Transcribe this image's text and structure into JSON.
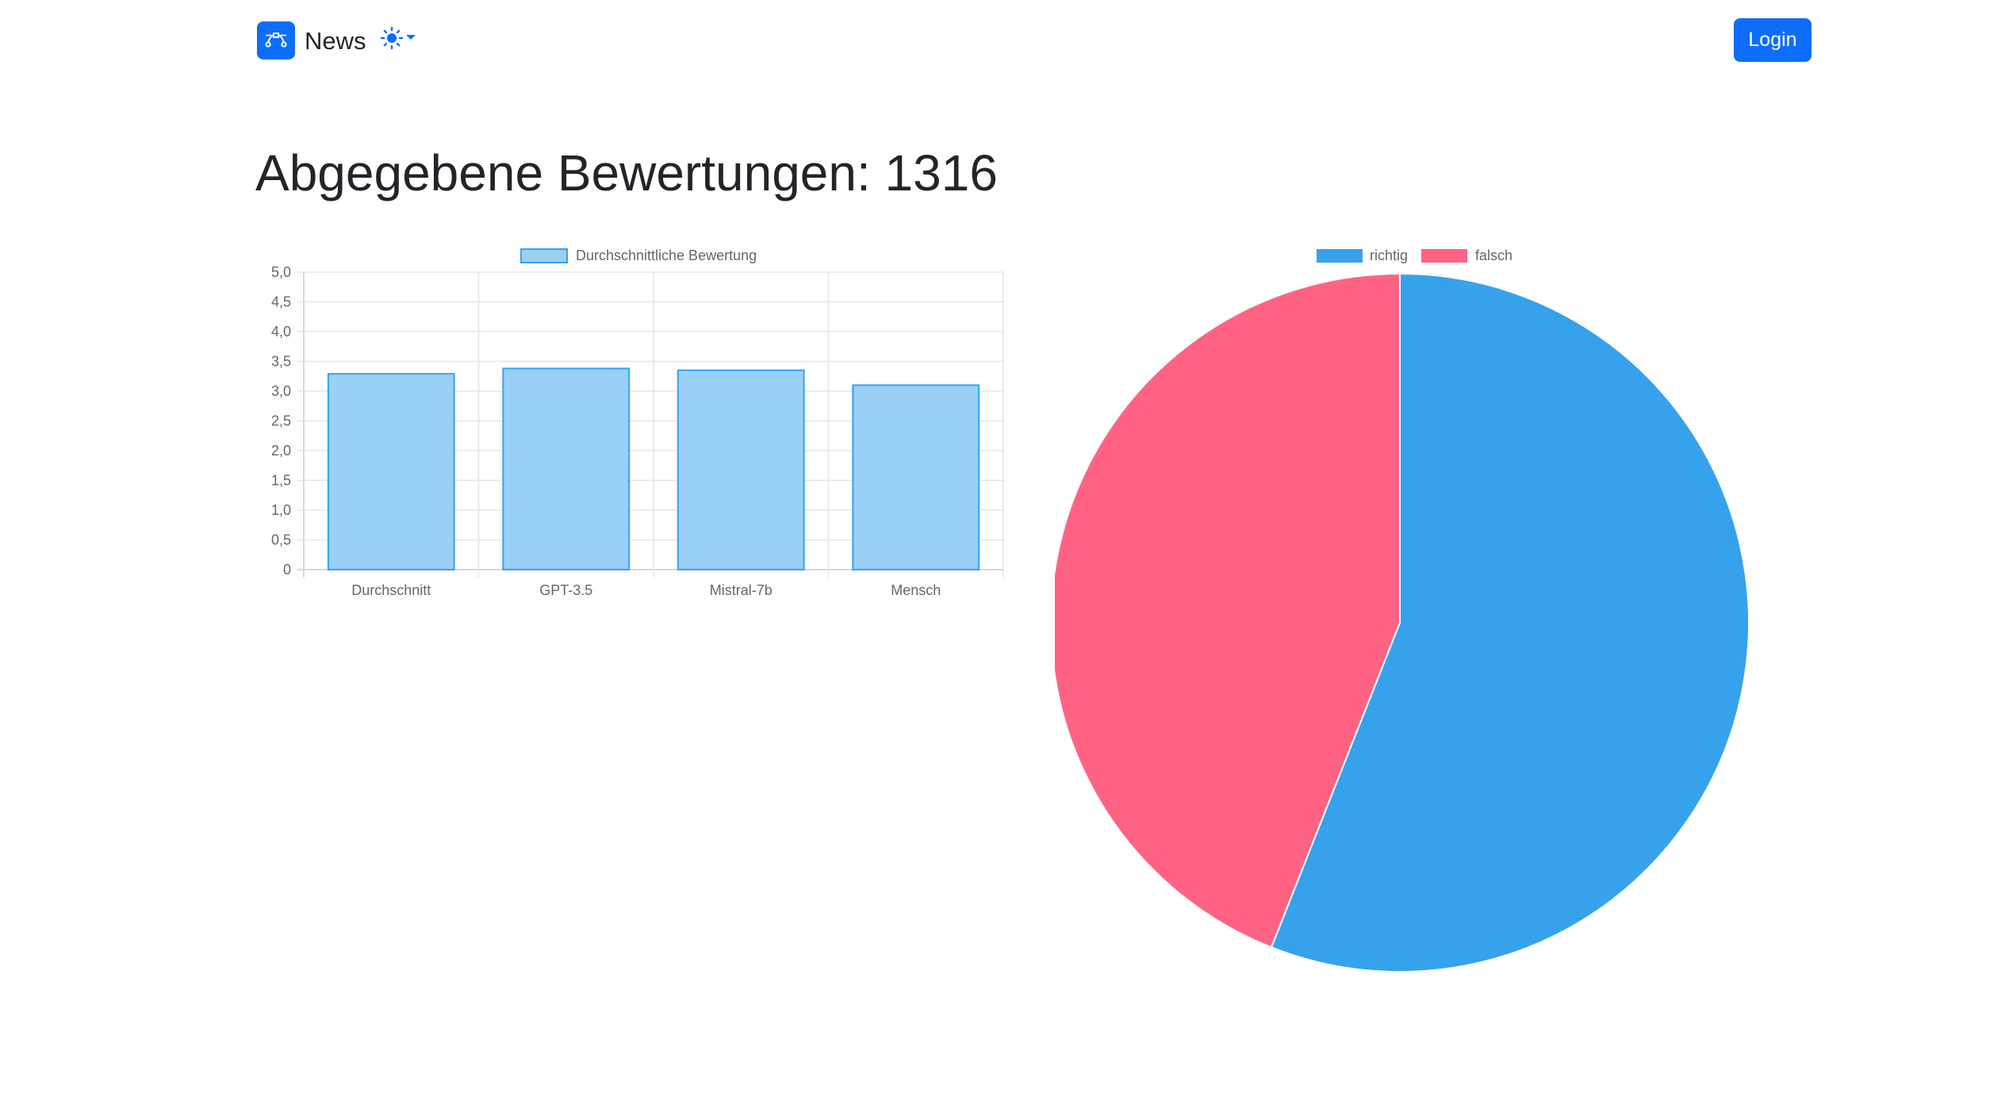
{
  "navbar": {
    "brand_label": "News",
    "brand_icon": "bezier-curve-icon",
    "theme_icon": "sun-icon",
    "login_label": "Login"
  },
  "page": {
    "title": "Abgegebene Bewertungen: 1316"
  },
  "colors": {
    "primary": "#0d6efd",
    "bar_fill": "#9ad0f5",
    "bar_border": "#36a2eb",
    "richtig": "#36a2eb",
    "falsch": "#ff6384"
  },
  "chart_data": [
    {
      "type": "bar",
      "categories": [
        "Durchschnitt",
        "GPT-3.5",
        "Mistral-7b",
        "Mensch"
      ],
      "series": [
        {
          "name": "Durchschnittliche Bewertung",
          "values": [
            3.29,
            3.38,
            3.35,
            3.1
          ]
        }
      ],
      "y_ticks": [
        "0",
        "0,5",
        "1,0",
        "1,5",
        "2,0",
        "2,5",
        "3,0",
        "3,5",
        "4,0",
        "4,5",
        "5,0"
      ],
      "ylim": [
        0,
        5
      ],
      "grid": true,
      "legend": "top"
    },
    {
      "type": "pie",
      "labels": [
        "richtig",
        "falsch"
      ],
      "values": [
        56,
        44
      ],
      "legend": "top"
    }
  ]
}
